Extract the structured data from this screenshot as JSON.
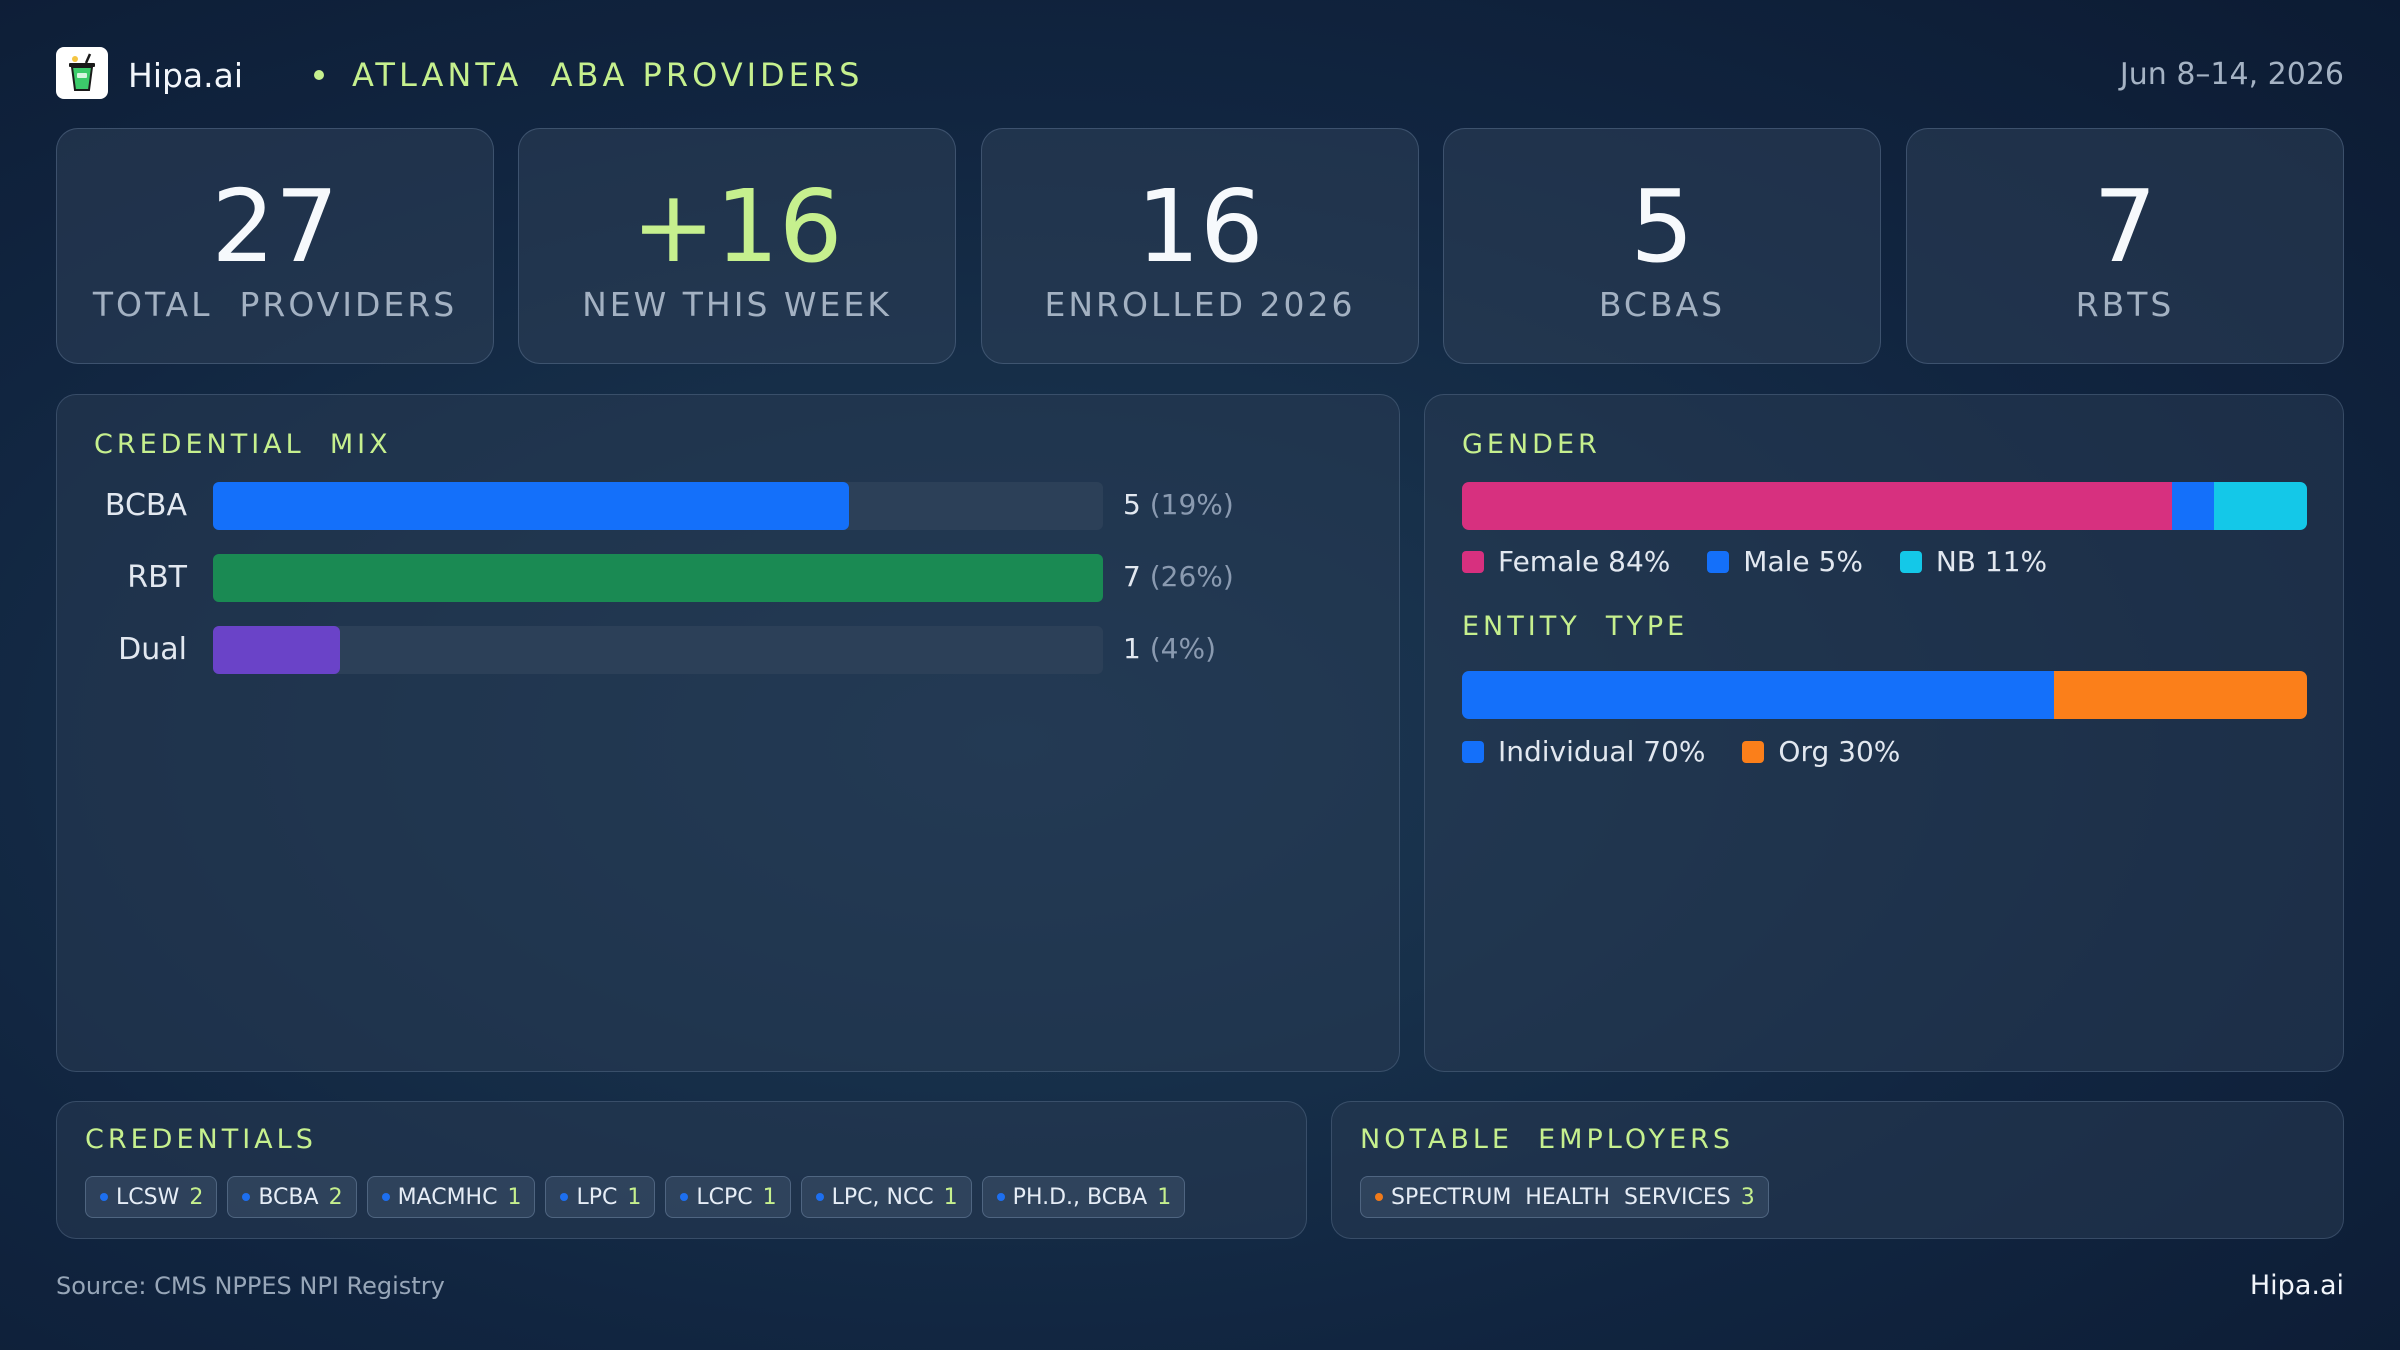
{
  "header": {
    "brand": "Hipa.ai",
    "title": "ATLANTA  ABA PROVIDERS",
    "date_range": "Jun 8–14, 2026"
  },
  "kpis": [
    {
      "value": "27",
      "label": "TOTAL  PROVIDERS"
    },
    {
      "value": "+16",
      "label": "NEW THIS WEEK"
    },
    {
      "value": "16",
      "label": "ENROLLED 2026"
    },
    {
      "value": "5",
      "label": "BCBAS"
    },
    {
      "value": "7",
      "label": "RBTS"
    }
  ],
  "credential_mix": {
    "title": "CREDENTIAL  MIX",
    "max_count": 7,
    "rows": [
      {
        "label": "BCBA",
        "count": 5,
        "count_text": "5",
        "pct_text": "(19%)",
        "color": "#1470fa"
      },
      {
        "label": "RBT",
        "count": 7,
        "count_text": "7",
        "pct_text": "(26%)",
        "color": "#1a8a53"
      },
      {
        "label": "Dual",
        "count": 1,
        "count_text": "1",
        "pct_text": "(4%)",
        "color": "#6a43c8"
      }
    ]
  },
  "gender": {
    "title": "GENDER",
    "segments": [
      {
        "label": "Female 84%",
        "pct": 84,
        "color": "#d7307f"
      },
      {
        "label": "Male 5%",
        "pct": 5,
        "color": "#1470fa"
      },
      {
        "label": "NB 11%",
        "pct": 11,
        "color": "#14c8e8"
      }
    ]
  },
  "entity_type": {
    "title": "ENTITY  TYPE",
    "segments": [
      {
        "label": "Individual 70%",
        "pct": 70,
        "color": "#1470fa"
      },
      {
        "label": "Org 30%",
        "pct": 30,
        "color": "#fb7f1a"
      }
    ]
  },
  "credentials": {
    "title": "CREDENTIALS",
    "dot_color": "#1d6ff0",
    "items": [
      {
        "name": "LCSW",
        "count": "2"
      },
      {
        "name": "BCBA",
        "count": "2"
      },
      {
        "name": "MACMHC",
        "count": "1"
      },
      {
        "name": "LPC",
        "count": "1"
      },
      {
        "name": "LCPC",
        "count": "1"
      },
      {
        "name": "LPC, NCC",
        "count": "1"
      },
      {
        "name": "PH.D., BCBA",
        "count": "1"
      }
    ]
  },
  "employers": {
    "title": "NOTABLE  EMPLOYERS",
    "dot_color": "#f07a1a",
    "items": [
      {
        "name": "SPECTRUM  HEALTH  SERVICES",
        "count": "3"
      }
    ]
  },
  "footer": {
    "source": "Source: CMS NPPES NPI Registry",
    "brand": "Hipa.ai"
  },
  "colors": {
    "accent": "#c6f08e",
    "background": "#132a44"
  }
}
